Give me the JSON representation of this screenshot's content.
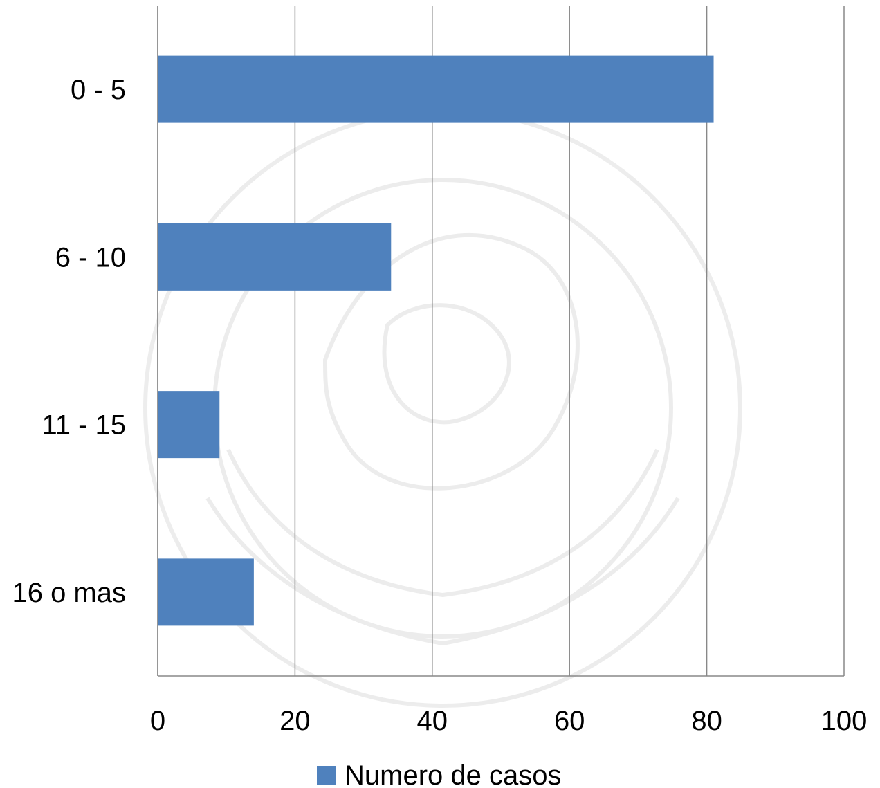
{
  "chart_data": {
    "type": "bar",
    "orientation": "horizontal",
    "categories": [
      "0 - 5",
      "6 - 10",
      "11 - 15",
      "16 o mas"
    ],
    "series": [
      {
        "name": "Numero de casos",
        "values": [
          81,
          34,
          9,
          14
        ],
        "color": "#4f81bd"
      }
    ],
    "xlim": [
      0,
      100
    ],
    "xticks": [
      0,
      20,
      40,
      60,
      80,
      100
    ],
    "xticks_text": [
      "0",
      "20",
      "40",
      "60",
      "80",
      "100"
    ],
    "grid": true,
    "legend": "bottom",
    "gridline_color": "#888888",
    "axis_color": "#888888"
  }
}
